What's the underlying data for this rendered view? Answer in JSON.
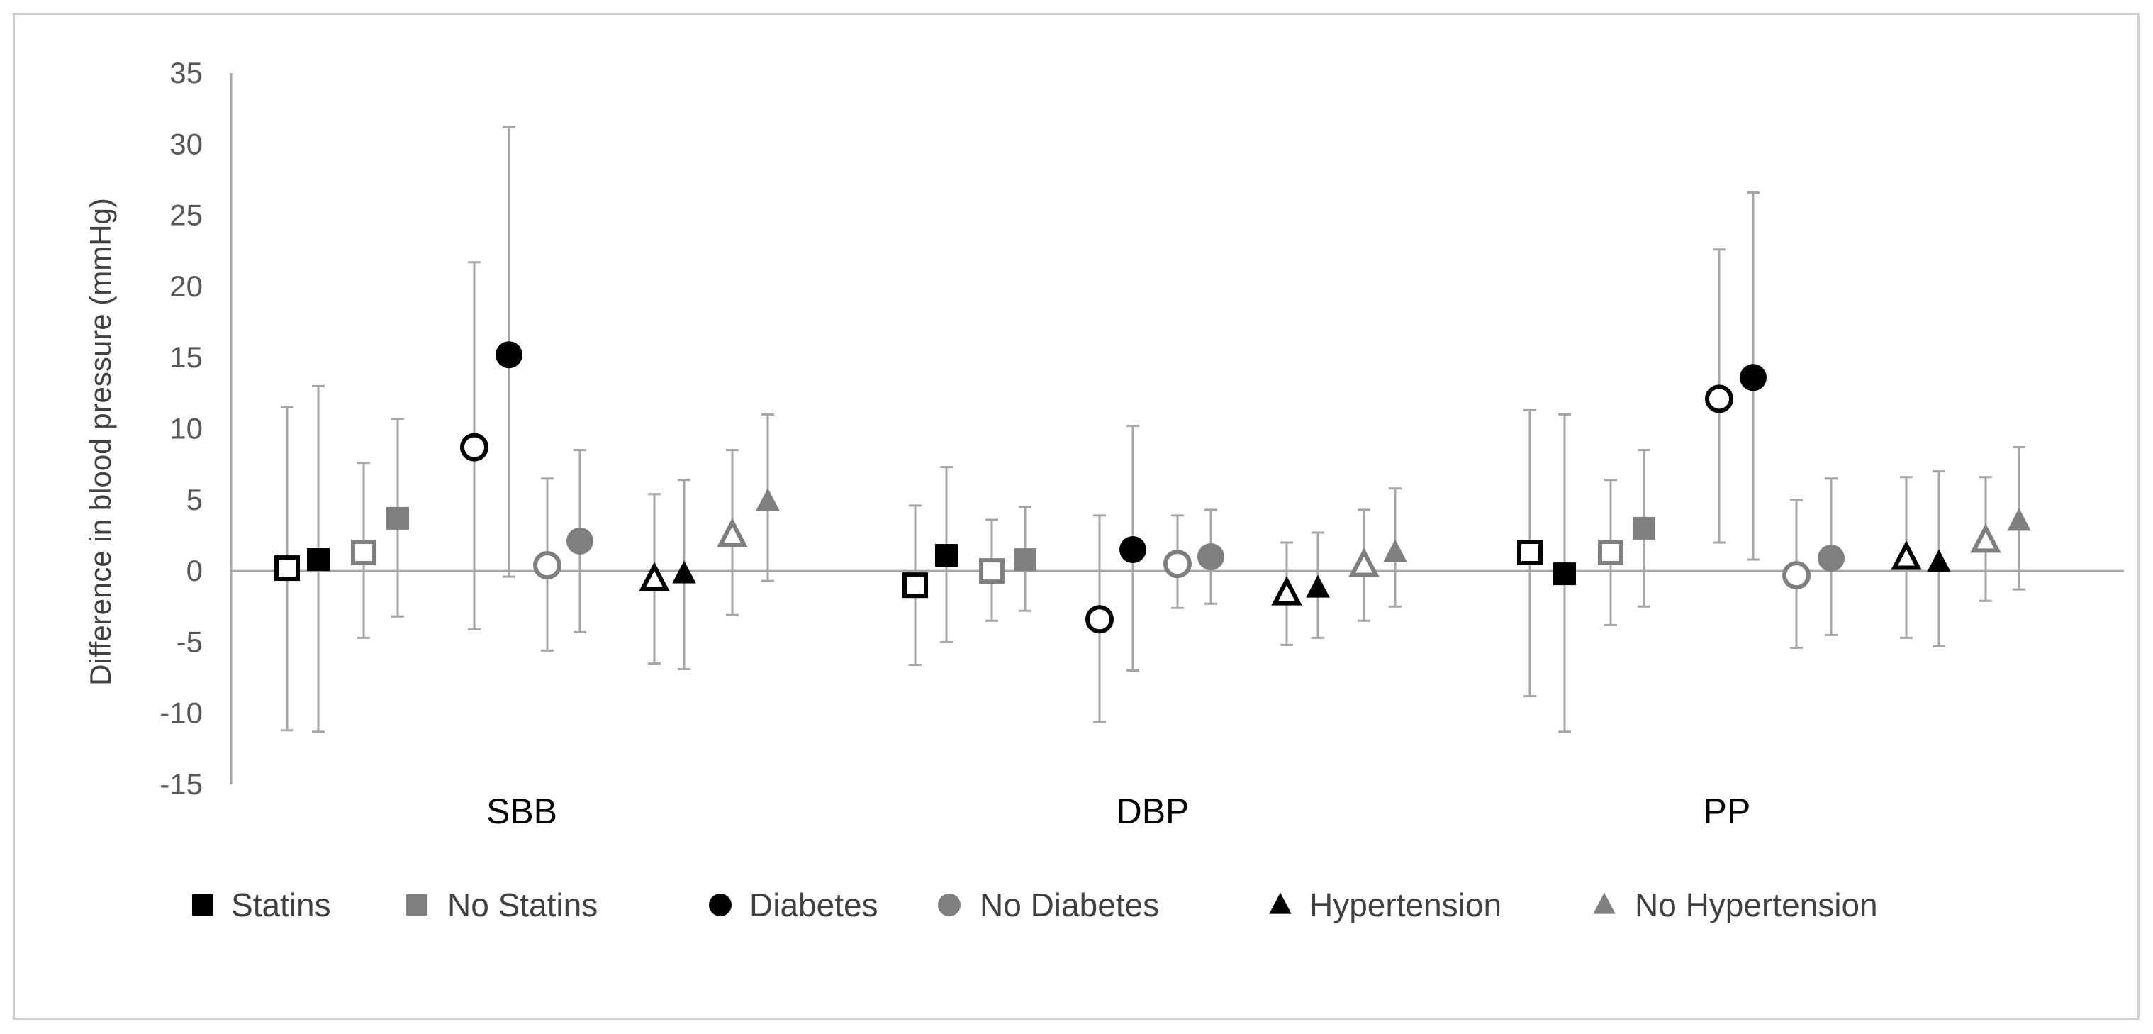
{
  "chart_data": {
    "type": "scatter",
    "subtype": "point-with-error-bars",
    "title": "",
    "xlabel": "",
    "ylabel": "Difference in blood pressure (mmHg)",
    "ylim": [
      -15,
      35
    ],
    "yticks": [
      -15,
      -10,
      -5,
      0,
      5,
      10,
      15,
      20,
      25,
      30,
      35
    ],
    "groups": [
      "SBB",
      "DBP",
      "PP"
    ],
    "colors": {
      "black": "#000000",
      "gray": "#7f7f7f",
      "errorbar": "#a6a6a6",
      "axis": "#a6a6a6",
      "zero_line": "#a6a6a6"
    },
    "legend": [
      {
        "label": "Statins",
        "marker": "square",
        "color": "#000000"
      },
      {
        "label": "No Statins",
        "marker": "square",
        "color": "#7f7f7f"
      },
      {
        "label": "Diabetes",
        "marker": "circle",
        "color": "#000000"
      },
      {
        "label": "No Diabetes",
        "marker": "circle",
        "color": "#7f7f7f"
      },
      {
        "label": "Hypertension",
        "marker": "triangle",
        "color": "#000000"
      },
      {
        "label": "No Hypertension",
        "marker": "triangle",
        "color": "#7f7f7f"
      }
    ],
    "series": [
      {
        "name": "Statins (open)",
        "marker": "square",
        "filled": false,
        "color": "#000000",
        "values": [
          0.2,
          -1.0,
          1.3
        ],
        "lower": [
          -11.2,
          -6.6,
          -8.8
        ],
        "upper": [
          11.5,
          4.6,
          11.3
        ]
      },
      {
        "name": "Statins",
        "marker": "square",
        "filled": true,
        "color": "#000000",
        "values": [
          0.8,
          1.1,
          -0.2
        ],
        "lower": [
          -11.3,
          -5.0,
          -11.3
        ],
        "upper": [
          13.0,
          7.3,
          11.0
        ]
      },
      {
        "name": "No Statins (open)",
        "marker": "square",
        "filled": false,
        "color": "#7f7f7f",
        "values": [
          1.3,
          0.0,
          1.3
        ],
        "lower": [
          -4.7,
          -3.5,
          -3.8
        ],
        "upper": [
          7.6,
          3.6,
          6.4
        ]
      },
      {
        "name": "No Statins",
        "marker": "square",
        "filled": true,
        "color": "#7f7f7f",
        "values": [
          3.7,
          0.8,
          3.0
        ],
        "lower": [
          -3.2,
          -2.8,
          -2.5
        ],
        "upper": [
          10.7,
          4.5,
          8.5
        ]
      },
      {
        "name": "Diabetes (open)",
        "marker": "circle",
        "filled": false,
        "color": "#000000",
        "values": [
          8.7,
          -3.4,
          12.1
        ],
        "lower": [
          -4.1,
          -10.6,
          2.0
        ],
        "upper": [
          21.7,
          3.9,
          22.6
        ]
      },
      {
        "name": "Diabetes",
        "marker": "circle",
        "filled": true,
        "color": "#000000",
        "values": [
          15.2,
          1.5,
          13.6
        ],
        "lower": [
          -0.4,
          -7.0,
          0.8
        ],
        "upper": [
          31.2,
          10.2,
          26.6
        ]
      },
      {
        "name": "No Diabetes (open)",
        "marker": "circle",
        "filled": false,
        "color": "#7f7f7f",
        "values": [
          0.4,
          0.5,
          -0.3
        ],
        "lower": [
          -5.6,
          -2.6,
          -5.4
        ],
        "upper": [
          6.5,
          3.9,
          5.0
        ]
      },
      {
        "name": "No Diabetes",
        "marker": "circle",
        "filled": true,
        "color": "#7f7f7f",
        "values": [
          2.1,
          1.0,
          0.9
        ],
        "lower": [
          -4.3,
          -2.3,
          -4.5
        ],
        "upper": [
          8.5,
          4.3,
          6.5
        ]
      },
      {
        "name": "Hypertension (open)",
        "marker": "triangle",
        "filled": false,
        "color": "#000000",
        "values": [
          -0.6,
          -1.6,
          0.9
        ],
        "lower": [
          -6.5,
          -5.2,
          -4.7
        ],
        "upper": [
          5.4,
          2.0,
          6.6
        ]
      },
      {
        "name": "Hypertension",
        "marker": "triangle",
        "filled": true,
        "color": "#000000",
        "values": [
          -0.2,
          -1.2,
          0.6
        ],
        "lower": [
          -6.9,
          -4.7,
          -5.3
        ],
        "upper": [
          6.4,
          2.7,
          7.0
        ]
      },
      {
        "name": "No Hypertension (open)",
        "marker": "triangle",
        "filled": false,
        "color": "#7f7f7f",
        "values": [
          2.5,
          0.4,
          2.1
        ],
        "lower": [
          -3.1,
          -3.5,
          -2.1
        ],
        "upper": [
          8.5,
          4.3,
          6.6
        ]
      },
      {
        "name": "No Hypertension",
        "marker": "triangle",
        "filled": true,
        "color": "#7f7f7f",
        "values": [
          4.9,
          1.3,
          3.5
        ],
        "lower": [
          -0.7,
          -2.5,
          -1.3
        ],
        "upper": [
          11.0,
          5.8,
          8.7
        ]
      }
    ]
  }
}
